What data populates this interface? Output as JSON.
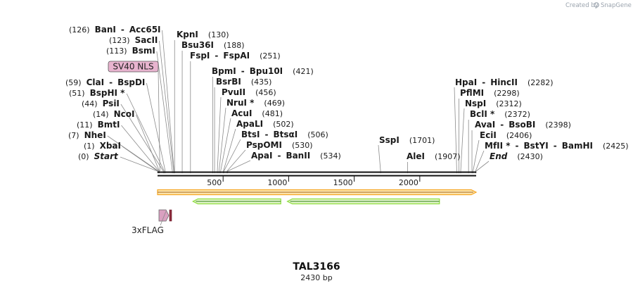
{
  "credit": {
    "text": "Created by",
    "brand": "SnapGene"
  },
  "plasmid": {
    "name": "TAL3166",
    "length_label": "2430 bp",
    "length_bp": 2430
  },
  "ticks": [
    {
      "bp": 500,
      "label": "500"
    },
    {
      "bp": 1000,
      "label": "1000"
    },
    {
      "bp": 1500,
      "label": "1500"
    },
    {
      "bp": 2000,
      "label": "2000"
    }
  ],
  "sites": [
    {
      "pos": "(126)",
      "bp": 126,
      "names": [
        "BanI",
        "Acc65I"
      ]
    },
    {
      "pos": "(123)",
      "bp": 123,
      "names": [
        "SacII"
      ]
    },
    {
      "pos": "(113)",
      "bp": 113,
      "names": [
        "BsmI"
      ]
    },
    {
      "pos": "(59)",
      "bp": 59,
      "names": [
        "ClaI",
        "BspDI"
      ]
    },
    {
      "pos": "(51)",
      "bp": 51,
      "names": [
        "BspHI *"
      ]
    },
    {
      "pos": "(44)",
      "bp": 44,
      "names": [
        "PsiI"
      ]
    },
    {
      "pos": "(14)",
      "bp": 14,
      "names": [
        "NcoI"
      ]
    },
    {
      "pos": "(11)",
      "bp": 11,
      "names": [
        "BmtI"
      ]
    },
    {
      "pos": "(7)",
      "bp": 7,
      "names": [
        "NheI"
      ]
    },
    {
      "pos": "(1)",
      "bp": 1,
      "names": [
        "XbaI"
      ]
    },
    {
      "pos": "(0)",
      "bp": 0,
      "names": [
        "Start"
      ],
      "italic": true
    },
    {
      "pos": "(130)",
      "bp": 130,
      "names": [
        "KpnI"
      ]
    },
    {
      "pos": "(188)",
      "bp": 188,
      "names": [
        "Bsu36I"
      ]
    },
    {
      "pos": "(251)",
      "bp": 251,
      "names": [
        "FspI",
        "FspAI"
      ]
    },
    {
      "pos": "(421)",
      "bp": 421,
      "names": [
        "BpmI",
        "Bpu10I"
      ]
    },
    {
      "pos": "(435)",
      "bp": 435,
      "names": [
        "BsrBI"
      ]
    },
    {
      "pos": "(456)",
      "bp": 456,
      "names": [
        "PvuII"
      ]
    },
    {
      "pos": "(469)",
      "bp": 469,
      "names": [
        "NruI *"
      ]
    },
    {
      "pos": "(481)",
      "bp": 481,
      "names": [
        "AcuI"
      ]
    },
    {
      "pos": "(502)",
      "bp": 502,
      "names": [
        "ApaLI"
      ]
    },
    {
      "pos": "(506)",
      "bp": 506,
      "names": [
        "BtsI",
        "BtsαI"
      ]
    },
    {
      "pos": "(530)",
      "bp": 530,
      "names": [
        "PspOMI"
      ]
    },
    {
      "pos": "(534)",
      "bp": 534,
      "names": [
        "ApaI",
        "BanII"
      ]
    },
    {
      "pos": "(1701)",
      "bp": 1701,
      "names": [
        "SspI"
      ]
    },
    {
      "pos": "(1907)",
      "bp": 1907,
      "names": [
        "AleI"
      ]
    },
    {
      "pos": "(2282)",
      "bp": 2282,
      "names": [
        "HpaI",
        "HincII"
      ]
    },
    {
      "pos": "(2298)",
      "bp": 2298,
      "names": [
        "PflMI"
      ]
    },
    {
      "pos": "(2312)",
      "bp": 2312,
      "names": [
        "NspI"
      ]
    },
    {
      "pos": "(2372)",
      "bp": 2372,
      "names": [
        "BclI *"
      ]
    },
    {
      "pos": "(2398)",
      "bp": 2398,
      "names": [
        "AvaI",
        "BsoBI"
      ]
    },
    {
      "pos": "(2406)",
      "bp": 2406,
      "names": [
        "EciI"
      ]
    },
    {
      "pos": "(2425)",
      "bp": 2425,
      "names": [
        "MfII *",
        "BstYI",
        "BamHI"
      ]
    },
    {
      "pos": "(2430)",
      "bp": 2430,
      "names": [
        "End"
      ],
      "italic": true
    }
  ],
  "features": [
    {
      "name": "SV40 NLS",
      "color": "#e8b4cf",
      "start_bp": 18,
      "end_bp": 39,
      "strand": "+",
      "labelled": true
    },
    {
      "name": "3xFLAG",
      "color": "#d9a0c0",
      "start_bp": 0,
      "end_bp": 66,
      "strand": "+",
      "labelled": true
    },
    {
      "name": "",
      "color": "#f6a623",
      "start_bp": 0,
      "end_bp": 2430,
      "strand": "+",
      "labelled": false
    },
    {
      "name": "",
      "color": "#8ddc3c",
      "start_bp": 270,
      "end_bp": 940,
      "strand": "-",
      "labelled": false
    },
    {
      "name": "",
      "color": "#8ddc3c",
      "start_bp": 990,
      "end_bp": 2150,
      "strand": "-",
      "labelled": false
    }
  ]
}
